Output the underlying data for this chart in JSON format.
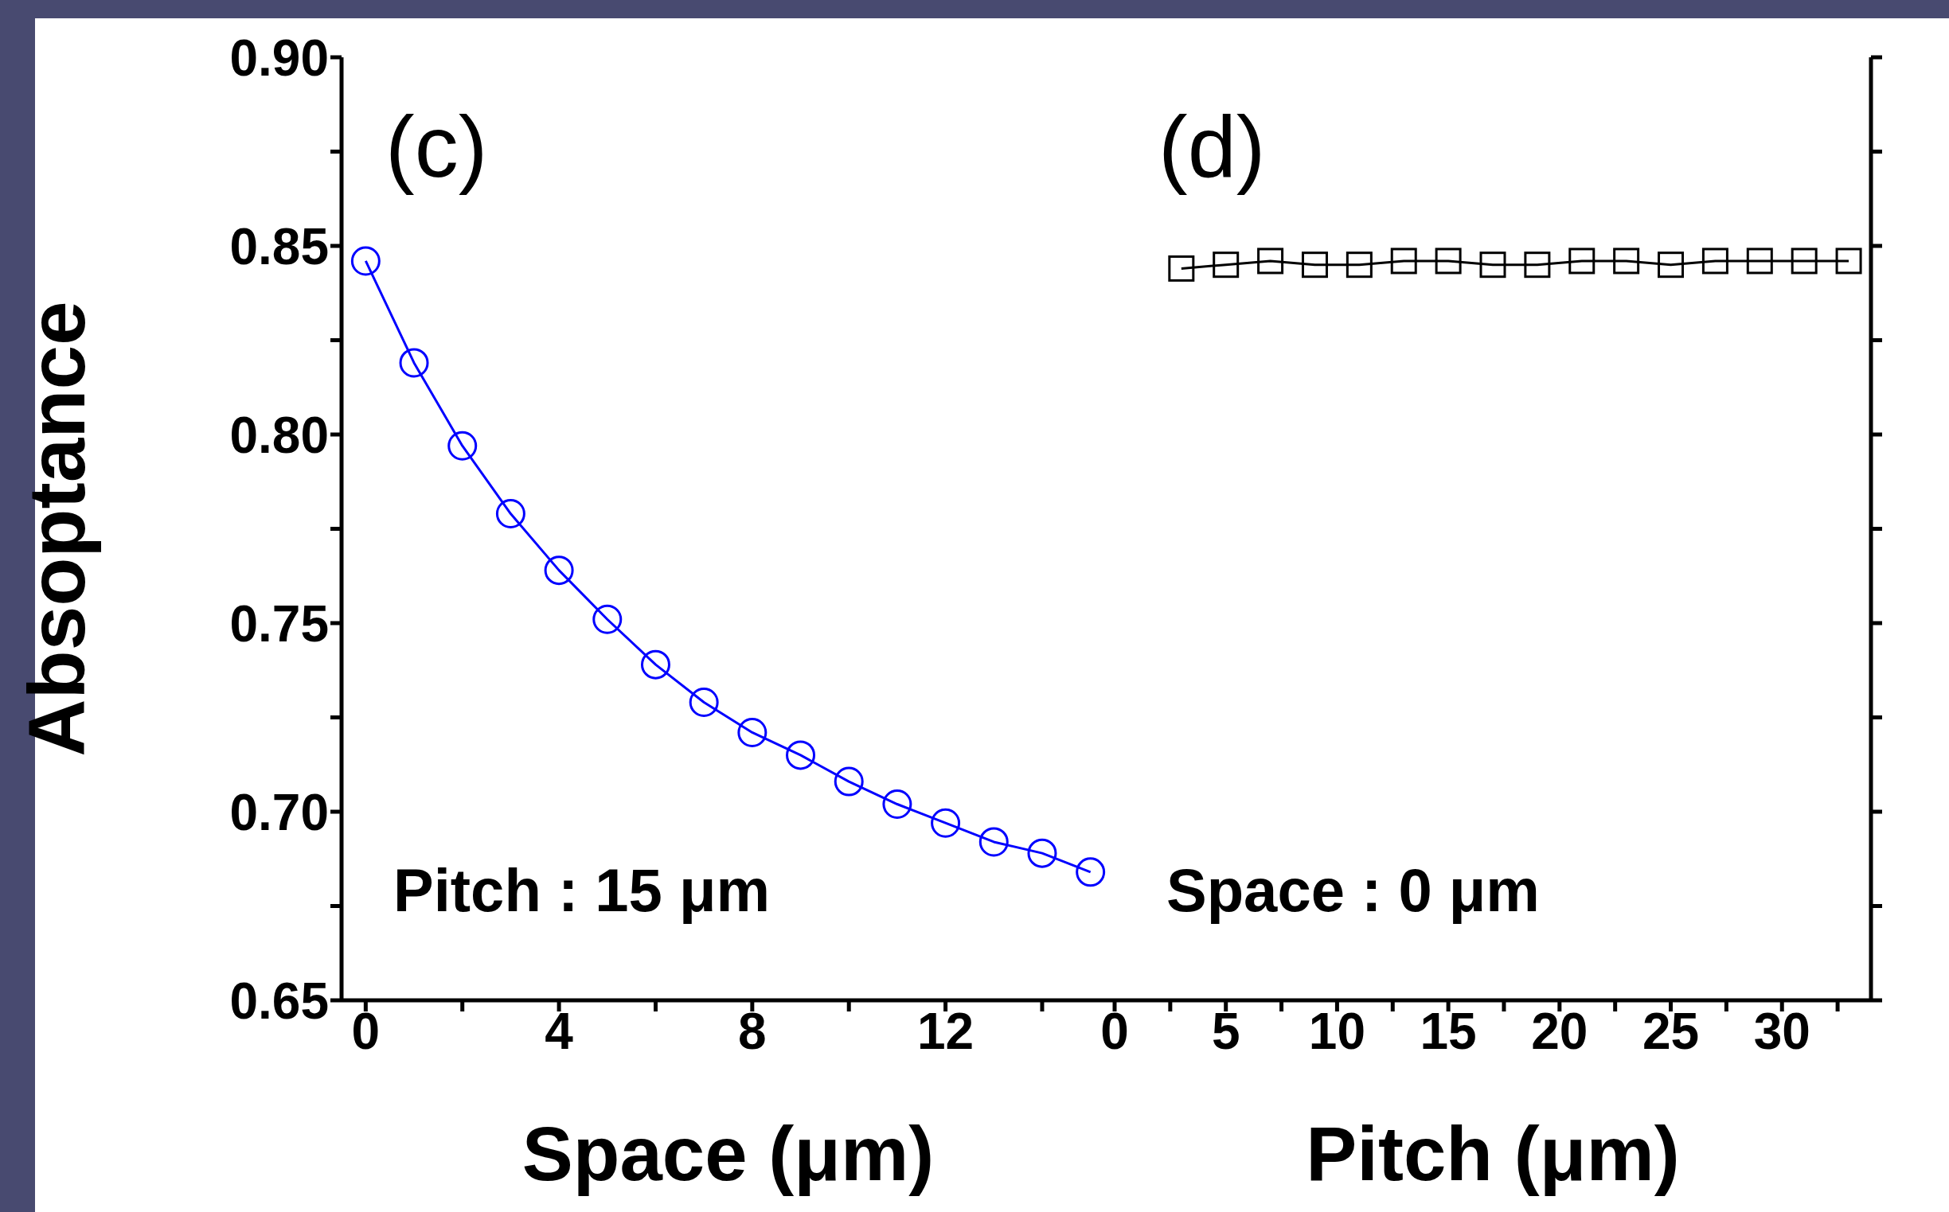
{
  "chart_data": [
    {
      "type": "line",
      "xlabel": "Space (μm)",
      "ylabel": "Absoptance",
      "annotations": [
        "(c)",
        "Pitch : 15 μm"
      ],
      "marker": "circle",
      "x": [
        0,
        1,
        2,
        3,
        4,
        5,
        6,
        7,
        8,
        9,
        10,
        11,
        12,
        13,
        14,
        15
      ],
      "series": [
        {
          "color": "#0000ff",
          "values": [
            0.846,
            0.819,
            0.797,
            0.779,
            0.764,
            0.751,
            0.739,
            0.729,
            0.721,
            0.715,
            0.708,
            0.702,
            0.697,
            0.692,
            0.689,
            0.684
          ]
        }
      ],
      "xlim": [
        -0.5,
        15.5
      ],
      "xticks": [
        0,
        {
          "value": 2,
          "label": null
        },
        4,
        {
          "value": 6,
          "label": null
        },
        8,
        {
          "value": 10,
          "label": null
        },
        12,
        {
          "value": 14,
          "label": null
        }
      ],
      "ylim": [
        0.65,
        0.9
      ],
      "yticks": [
        0.65,
        {
          "value": 0.675,
          "label": null
        },
        {
          "value": 0.7,
          "label": "0.70"
        },
        {
          "value": 0.725,
          "label": null
        },
        0.75,
        {
          "value": 0.775,
          "label": null
        },
        {
          "value": 0.8,
          "label": "0.80"
        },
        {
          "value": 0.825,
          "label": null
        },
        0.85,
        {
          "value": 0.875,
          "label": null
        },
        {
          "value": 0.9,
          "label": "0.90"
        }
      ]
    },
    {
      "type": "line",
      "xlabel": "Pitch (μm)",
      "annotations": [
        "(d)",
        "Space : 0 μm"
      ],
      "marker": "square",
      "tick_labels": "x",
      "x": [
        3,
        5,
        7,
        9,
        11,
        13,
        15,
        17,
        19,
        21,
        23,
        25,
        27,
        29,
        31,
        33
      ],
      "series": [
        {
          "color": "#000000",
          "values": [
            0.844,
            0.845,
            0.846,
            0.845,
            0.845,
            0.846,
            0.846,
            0.845,
            0.845,
            0.846,
            0.846,
            0.845,
            0.846,
            0.846,
            0.846,
            0.846
          ]
        }
      ],
      "xlim": [
        0,
        34
      ],
      "xticks": [
        0,
        {
          "value": 2.5,
          "label": null
        },
        5,
        {
          "value": 7.5,
          "label": null
        },
        10,
        {
          "value": 12.5,
          "label": null
        },
        15,
        {
          "value": 17.5,
          "label": null
        },
        20,
        {
          "value": 22.5,
          "label": null
        },
        25,
        {
          "value": 27.5,
          "label": null
        },
        30,
        {
          "value": 32.5,
          "label": null
        }
      ],
      "ylim": [
        0.65,
        0.9
      ],
      "yticks": [
        0.65,
        {
          "value": 0.675,
          "label": null
        },
        0.7,
        {
          "value": 0.725,
          "label": null
        },
        0.75,
        {
          "value": 0.775,
          "label": null
        },
        0.8,
        {
          "value": 0.825,
          "label": null
        },
        0.85,
        {
          "value": 0.875,
          "label": null
        },
        0.9
      ]
    }
  ]
}
